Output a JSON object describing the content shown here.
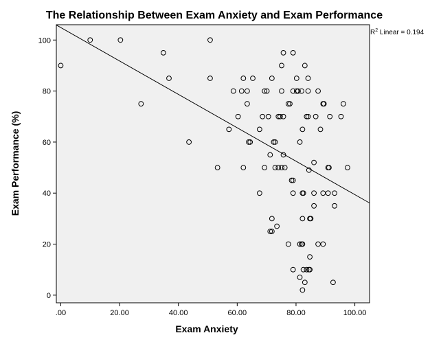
{
  "chart_data": {
    "type": "scatter",
    "title": "The Relationship Between Exam Anxiety and Exam Performance",
    "xlabel": "Exam Anxiety",
    "ylabel": "Exam Performance (%)",
    "xlim": [
      -1.5,
      105
    ],
    "ylim": [
      -3,
      106
    ],
    "xticks": [
      0,
      20,
      40,
      60,
      80,
      100
    ],
    "xtick_labels": [
      ".00",
      "20.00",
      "40.00",
      "60.00",
      "80.00",
      "100.00"
    ],
    "yticks": [
      0,
      20,
      40,
      60,
      80,
      100
    ],
    "ytick_labels": [
      "0",
      "20",
      "40",
      "60",
      "80",
      "100"
    ],
    "grid": false,
    "background_color": "#f0f0f0",
    "fit_line": {
      "intercept": 104.9,
      "slope": -0.655,
      "x_range": [
        -1.5,
        105
      ]
    },
    "annotation": {
      "prefix": "R",
      "superscript": "2",
      "text": " Linear = 0.194"
    },
    "points": [
      {
        "x": 0.0,
        "y": 90
      },
      {
        "x": 10.0,
        "y": 100
      },
      {
        "x": 20.3,
        "y": 100
      },
      {
        "x": 27.3,
        "y": 75
      },
      {
        "x": 34.9,
        "y": 95
      },
      {
        "x": 36.8,
        "y": 85
      },
      {
        "x": 43.6,
        "y": 60
      },
      {
        "x": 50.8,
        "y": 100
      },
      {
        "x": 50.8,
        "y": 85
      },
      {
        "x": 53.3,
        "y": 50
      },
      {
        "x": 57.2,
        "y": 65
      },
      {
        "x": 58.7,
        "y": 80
      },
      {
        "x": 60.3,
        "y": 70
      },
      {
        "x": 61.5,
        "y": 80
      },
      {
        "x": 62.1,
        "y": 85
      },
      {
        "x": 62.1,
        "y": 50
      },
      {
        "x": 63.4,
        "y": 75
      },
      {
        "x": 63.4,
        "y": 80
      },
      {
        "x": 63.9,
        "y": 60
      },
      {
        "x": 64.4,
        "y": 60
      },
      {
        "x": 65.3,
        "y": 85
      },
      {
        "x": 67.6,
        "y": 65
      },
      {
        "x": 67.6,
        "y": 40
      },
      {
        "x": 68.6,
        "y": 70
      },
      {
        "x": 69.3,
        "y": 80
      },
      {
        "x": 69.3,
        "y": 50
      },
      {
        "x": 70.1,
        "y": 80
      },
      {
        "x": 70.6,
        "y": 70
      },
      {
        "x": 71.2,
        "y": 55
      },
      {
        "x": 71.2,
        "y": 25
      },
      {
        "x": 71.8,
        "y": 85
      },
      {
        "x": 71.8,
        "y": 30
      },
      {
        "x": 71.8,
        "y": 25
      },
      {
        "x": 72.4,
        "y": 60
      },
      {
        "x": 72.9,
        "y": 60
      },
      {
        "x": 72.9,
        "y": 50
      },
      {
        "x": 73.5,
        "y": 27
      },
      {
        "x": 74.0,
        "y": 70
      },
      {
        "x": 74.0,
        "y": 50
      },
      {
        "x": 74.6,
        "y": 70
      },
      {
        "x": 75.1,
        "y": 50
      },
      {
        "x": 75.1,
        "y": 80
      },
      {
        "x": 75.1,
        "y": 90
      },
      {
        "x": 75.7,
        "y": 95
      },
      {
        "x": 75.7,
        "y": 70
      },
      {
        "x": 75.7,
        "y": 55
      },
      {
        "x": 76.2,
        "y": 50
      },
      {
        "x": 77.4,
        "y": 20
      },
      {
        "x": 77.4,
        "y": 75
      },
      {
        "x": 77.9,
        "y": 75
      },
      {
        "x": 78.5,
        "y": 45
      },
      {
        "x": 79.0,
        "y": 95
      },
      {
        "x": 79.0,
        "y": 80
      },
      {
        "x": 79.0,
        "y": 45
      },
      {
        "x": 79.0,
        "y": 40
      },
      {
        "x": 79.0,
        "y": 10
      },
      {
        "x": 80.2,
        "y": 85
      },
      {
        "x": 80.2,
        "y": 80
      },
      {
        "x": 80.7,
        "y": 80
      },
      {
        "x": 81.3,
        "y": 60
      },
      {
        "x": 81.3,
        "y": 20
      },
      {
        "x": 81.3,
        "y": 7
      },
      {
        "x": 81.9,
        "y": 20
      },
      {
        "x": 81.9,
        "y": 80
      },
      {
        "x": 82.2,
        "y": 65
      },
      {
        "x": 82.2,
        "y": 40
      },
      {
        "x": 82.2,
        "y": 30
      },
      {
        "x": 82.2,
        "y": 20
      },
      {
        "x": 82.2,
        "y": 2
      },
      {
        "x": 82.5,
        "y": 40
      },
      {
        "x": 82.5,
        "y": 10
      },
      {
        "x": 83.0,
        "y": 90
      },
      {
        "x": 83.0,
        "y": 5
      },
      {
        "x": 83.6,
        "y": 70
      },
      {
        "x": 83.6,
        "y": 10
      },
      {
        "x": 84.1,
        "y": 85
      },
      {
        "x": 84.1,
        "y": 80
      },
      {
        "x": 84.1,
        "y": 70
      },
      {
        "x": 84.4,
        "y": 10
      },
      {
        "x": 84.4,
        "y": 49
      },
      {
        "x": 84.7,
        "y": 30
      },
      {
        "x": 84.7,
        "y": 15
      },
      {
        "x": 84.7,
        "y": 10
      },
      {
        "x": 85.0,
        "y": 30
      },
      {
        "x": 86.1,
        "y": 52
      },
      {
        "x": 86.1,
        "y": 40
      },
      {
        "x": 86.1,
        "y": 35
      },
      {
        "x": 86.7,
        "y": 70
      },
      {
        "x": 87.5,
        "y": 80
      },
      {
        "x": 87.5,
        "y": 20
      },
      {
        "x": 88.3,
        "y": 65
      },
      {
        "x": 89.2,
        "y": 75
      },
      {
        "x": 89.2,
        "y": 40
      },
      {
        "x": 89.2,
        "y": 20
      },
      {
        "x": 89.5,
        "y": 75
      },
      {
        "x": 90.9,
        "y": 50
      },
      {
        "x": 90.9,
        "y": 40
      },
      {
        "x": 91.2,
        "y": 50
      },
      {
        "x": 91.5,
        "y": 70
      },
      {
        "x": 92.6,
        "y": 5
      },
      {
        "x": 93.1,
        "y": 40
      },
      {
        "x": 93.1,
        "y": 35
      },
      {
        "x": 95.3,
        "y": 70
      },
      {
        "x": 96.1,
        "y": 75
      },
      {
        "x": 97.5,
        "y": 50
      }
    ]
  }
}
